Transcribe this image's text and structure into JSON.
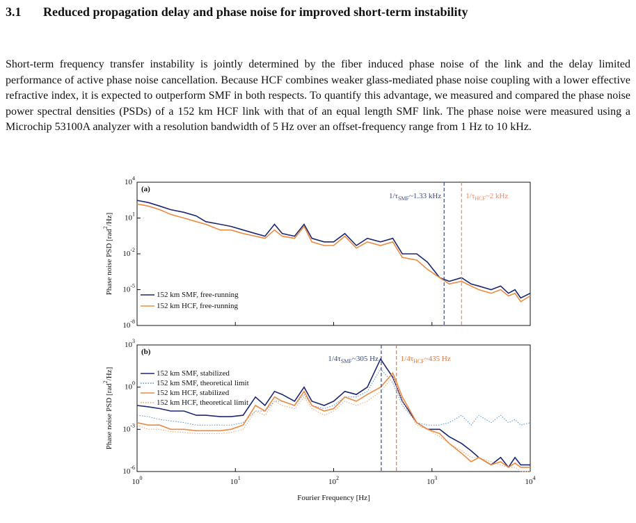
{
  "section": {
    "number": "3.1",
    "title": "Reduced propagation delay and phase noise for improved short-term instability"
  },
  "paragraph": "Short-term frequency transfer instability is jointly determined by the fiber induced phase noise of the link and the delay limited performance of active phase noise cancellation. Because HCF combines weaker glass-mediated phase noise coupling with a lower effective refractive index, it is expected to outperform SMF in both respects. To quantify this advantage, we measured and compared the phase noise power spectral densities (PSDs) of a 152 km HCF link with that of an equal length SMF link. The phase noise were measured using a Microchip 53100A analyzer with a resolution bandwidth of 5 Hz over an offset-frequency range from 1 Hz to 10 kHz.",
  "chart_data": [
    {
      "type": "line",
      "panel_label": "(a)",
      "ylabel": "Phase noise PSD [rad^{2}/Hz]",
      "log_x": true,
      "log_y": true,
      "legend": "lower left",
      "xlim": [
        1,
        10000
      ],
      "xticks": [
        {
          "value": 1,
          "label": "10^{0}"
        },
        {
          "value": 10,
          "label": "10^{1}"
        },
        {
          "value": 100,
          "label": "10^{2}"
        },
        {
          "value": 1000,
          "label": "10^{3}"
        },
        {
          "value": 10000,
          "label": "10^{4}"
        }
      ],
      "ylim": [
        1e-08,
        10000
      ],
      "yticks": [
        {
          "value": 1e-08,
          "label": "10^{-8}"
        },
        {
          "value": 1e-05,
          "label": "10^{-5}"
        },
        {
          "value": 0.01,
          "label": "10^{-2}"
        },
        {
          "value": 10,
          "label": "10^{1}"
        },
        {
          "value": 10000,
          "label": "10^{4}"
        }
      ],
      "vlines": [
        {
          "x": 1330,
          "label": "1/τ_{SMF}~1.33 kHz",
          "color": "#3a4a80"
        },
        {
          "x": 2000,
          "label": "1/τ_{HCF}~2 kHz",
          "color": "#ee8866"
        }
      ],
      "x": [
        1,
        1.3,
        1.7,
        2.2,
        3,
        4,
        5,
        7,
        9,
        12,
        16,
        20,
        25,
        30,
        40,
        50,
        60,
        80,
        100,
        130,
        170,
        220,
        300,
        400,
        500,
        700,
        900,
        1200,
        1500,
        2000,
        2500,
        3000,
        4000,
        5000,
        6000,
        7000,
        8000,
        10000
      ],
      "series": [
        {
          "name": "152 km SMF, free-running",
          "color": "#1c2670",
          "style": "solid",
          "values": [
            300,
            200,
            100,
            50,
            30,
            15,
            5,
            3,
            2,
            1,
            0.5,
            0.3,
            3,
            0.5,
            0.3,
            3,
            0.2,
            0.1,
            0.1,
            0.5,
            0.05,
            0.2,
            0.1,
            0.2,
            0.01,
            0.01,
            0.002,
            0.0001,
            5e-05,
            0.0001,
            3e-05,
            2e-05,
            1e-05,
            2e-05,
            5e-06,
            1e-05,
            2e-06,
            5e-06
          ]
        },
        {
          "name": "152 km HCF, free-running",
          "color": "#ec8a40",
          "style": "solid",
          "values": [
            150,
            100,
            50,
            20,
            10,
            5,
            3,
            1,
            1,
            0.5,
            0.3,
            0.2,
            1,
            0.3,
            0.2,
            2,
            0.1,
            0.05,
            0.05,
            0.3,
            0.03,
            0.1,
            0.05,
            0.1,
            0.005,
            0.003,
            0.0005,
            0.0001,
            3e-05,
            5e-05,
            2e-05,
            1e-05,
            5e-06,
            1e-05,
            3e-06,
            5e-06,
            1e-06,
            3e-06
          ]
        }
      ]
    },
    {
      "type": "line",
      "panel_label": "(b)",
      "ylabel": "Phase noise PSD [rad^{2}/Hz]",
      "xlabel": "Fourier Frequency [Hz]",
      "log_x": true,
      "log_y": true,
      "legend": "upper left",
      "xlim": [
        1,
        10000
      ],
      "xticks": [
        {
          "value": 1,
          "label": "10^{0}"
        },
        {
          "value": 10,
          "label": "10^{1}"
        },
        {
          "value": 100,
          "label": "10^{2}"
        },
        {
          "value": 1000,
          "label": "10^{3}"
        },
        {
          "value": 10000,
          "label": "10^{4}"
        }
      ],
      "ylim": [
        1e-06,
        1000
      ],
      "yticks": [
        {
          "value": 1e-06,
          "label": "10^{-6}"
        },
        {
          "value": 0.001,
          "label": "10^{-3}"
        },
        {
          "value": 1,
          "label": "10^{0}"
        },
        {
          "value": 1000,
          "label": "10^{3}"
        }
      ],
      "vlines": [
        {
          "x": 305,
          "label": "1/4τ_{SMF}~305 Hz",
          "color": "#3a4a80"
        },
        {
          "x": 435,
          "label": "1/4τ_{HCF}~435 Hz",
          "color": "#e8743a"
        }
      ],
      "x": [
        1,
        1.3,
        1.7,
        2.2,
        3,
        4,
        5,
        7,
        9,
        12,
        16,
        20,
        25,
        30,
        40,
        50,
        60,
        80,
        100,
        130,
        170,
        220,
        300,
        400,
        500,
        700,
        900,
        1200,
        1500,
        2000,
        2500,
        3000,
        4000,
        5000,
        6000,
        7000,
        8000,
        10000
      ],
      "series": [
        {
          "name": "152 km SMF, stabilized",
          "color": "#1c2670",
          "style": "solid",
          "values": [
            0.05,
            0.04,
            0.03,
            0.02,
            0.02,
            0.01,
            0.01,
            0.008,
            0.008,
            0.01,
            0.2,
            0.05,
            0.5,
            0.3,
            0.1,
            1,
            0.1,
            0.05,
            0.1,
            0.5,
            0.3,
            1,
            100,
            5,
            0.1,
            0.003,
            0.001,
            0.001,
            0.0003,
            0.0001,
            3e-05,
            1e-05,
            3e-06,
            1e-05,
            2e-06,
            1e-05,
            3e-06,
            3e-06
          ]
        },
        {
          "name": "152 km SMF, theoretical limit",
          "color": "#4a90d9",
          "style": "dotted",
          "values": [
            0.01,
            0.008,
            0.005,
            0.004,
            0.003,
            0.002,
            0.002,
            0.002,
            0.002,
            0.003,
            0.02,
            0.02,
            0.1,
            0.1,
            0.05,
            0.3,
            0.05,
            0.03,
            0.05,
            0.2,
            0.2,
            0.5,
            20,
            2,
            0.05,
            0.003,
            0.002,
            0.002,
            0.003,
            0.01,
            0.002,
            0.01,
            0.003,
            0.01,
            0.003,
            0.005,
            0.002,
            0.003
          ]
        },
        {
          "name": "152 km HCF, stabilized",
          "color": "#ec8a40",
          "style": "solid",
          "values": [
            0.003,
            0.002,
            0.002,
            0.001,
            0.001,
            0.0008,
            0.0008,
            0.0008,
            0.001,
            0.002,
            0.05,
            0.02,
            0.2,
            0.1,
            0.05,
            0.5,
            0.05,
            0.02,
            0.03,
            0.2,
            0.1,
            0.3,
            1,
            10,
            0.2,
            0.003,
            0.001,
            0.0005,
            0.0001,
            2e-05,
            5e-06,
            1e-05,
            3e-06,
            5e-06,
            2e-06,
            4e-06,
            2e-06,
            2e-06
          ]
        },
        {
          "name": "152 km HCF, theoretical limit",
          "color": "#f0a060",
          "style": "dotted",
          "values": [
            0.002,
            0.001,
            0.001,
            0.0007,
            0.0006,
            0.0005,
            0.0005,
            0.0005,
            0.0006,
            0.001,
            0.02,
            0.01,
            0.1,
            0.05,
            0.03,
            0.2,
            0.03,
            0.01,
            0.02,
            0.1,
            0.05,
            0.1,
            0.5,
            5,
            0.1,
            0.002,
            0.001,
            0.0003,
            0.0001,
            3e-05,
            1e-05,
            1e-05,
            5e-06,
            3e-06,
            2e-06,
            2e-06,
            1e-06,
            1e-06
          ]
        }
      ]
    }
  ]
}
